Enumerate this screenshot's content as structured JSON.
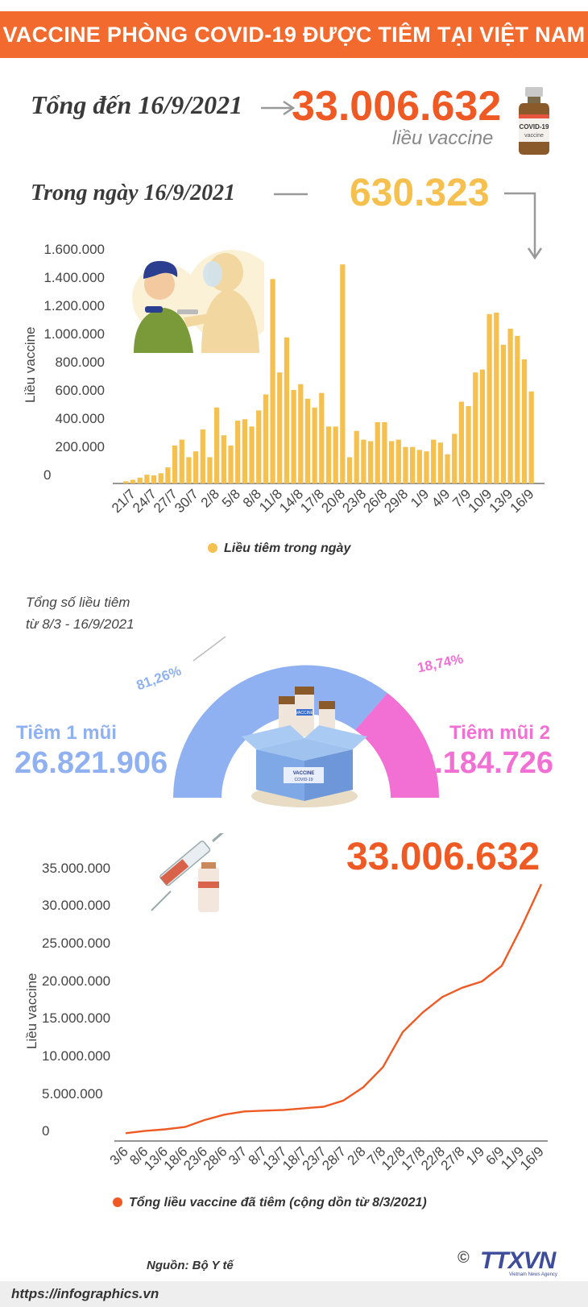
{
  "header": {
    "title": "VACCINE PHÒNG COVID-19 ĐƯỢC TIÊM TẠI VIỆT NAM"
  },
  "summary": {
    "total_label": "Tổng đến 16/9/2021",
    "total_value": "33.006.632",
    "total_unit": "liều vaccine",
    "vial_text": "COVID-19",
    "vial_subtext": "vaccine",
    "day_label": "Trong ngày 16/9/2021",
    "day_value": "630.323"
  },
  "colors": {
    "orange": "#ef5a24",
    "yellow": "#f5c04e",
    "blue": "#8fb1f2",
    "pink": "#f26fd3"
  },
  "bar_chart": {
    "ylabel": "Liều vaccine",
    "yticks": [
      "1.600.000",
      "1.400.000",
      "1.200.000",
      "1.000.000",
      "800.000",
      "600.000",
      "400.000",
      "200.000",
      "0"
    ],
    "legend": "Liều tiêm trong ngày"
  },
  "donut": {
    "caption_line1": "Tổng số liều tiêm",
    "caption_line2": "từ 8/3 - 16/9/2021",
    "dose1_label": "Tiêm 1 mũi",
    "dose1_value": "26.821.906",
    "dose1_pct": "81,26%",
    "dose2_label": "Tiêm mũi 2",
    "dose2_value": "6.184.726",
    "dose2_pct": "18,74%",
    "box_label_top": "VACCINE",
    "box_label_bottom": "COVID-19",
    "bottle_label": "VACCINE"
  },
  "line_chart": {
    "ylabel": "Liều vaccine",
    "yticks": [
      "35.000.000",
      "30.000.000",
      "25.000.000",
      "20.000.000",
      "15.000.000",
      "10.000.000",
      "5.000.000",
      "0"
    ],
    "total": "33.006.632",
    "legend": "Tổng liều vaccine đã tiêm (cộng dồn từ 8/3/2021)"
  },
  "footer": {
    "source": "Nguồn: Bộ Y tế",
    "url": "https://infographics.vn",
    "copyright": "©",
    "brand": "TTXVN",
    "brand_sub": "Vietnam News Agency"
  },
  "chart_data": [
    {
      "type": "bar",
      "title": "",
      "xlabel": "",
      "ylabel": "Liều vaccine",
      "ylim": [
        0,
        1600000
      ],
      "categories": [
        "20/7",
        "21/7",
        "22/7",
        "23/7",
        "24/7",
        "25/7",
        "26/7",
        "27/7",
        "28/7",
        "29/7",
        "30/7",
        "31/7",
        "1/8",
        "2/8",
        "3/8",
        "4/8",
        "5/8",
        "6/8",
        "7/8",
        "8/8",
        "9/8",
        "10/8",
        "11/8",
        "12/8",
        "13/8",
        "14/8",
        "15/8",
        "16/8",
        "17/8",
        "18/8",
        "19/8",
        "20/8",
        "21/8",
        "22/8",
        "23/8",
        "24/8",
        "25/8",
        "26/8",
        "27/8",
        "28/8",
        "29/8",
        "30/8",
        "31/8",
        "1/9",
        "2/9",
        "3/9",
        "4/9",
        "5/9",
        "6/9",
        "7/9",
        "8/9",
        "9/9",
        "10/9",
        "11/9",
        "12/9",
        "13/9",
        "14/9",
        "15/9",
        "16/9"
      ],
      "tick_labels": [
        "21/7",
        "24/7",
        "27/7",
        "30/7",
        "2/8",
        "5/8",
        "8/8",
        "11/8",
        "14/8",
        "17/8",
        "20/8",
        "23/8",
        "26/8",
        "29/8",
        "1/9",
        "4/9",
        "7/9",
        "10/9",
        "13/9",
        "16/9"
      ],
      "series": [
        {
          "name": "Liều tiêm trong ngày",
          "values": [
            15000,
            25000,
            40000,
            60000,
            55000,
            70000,
            110000,
            260000,
            300000,
            180000,
            220000,
            370000,
            180000,
            520000,
            330000,
            260000,
            430000,
            440000,
            390000,
            500000,
            610000,
            1400000,
            760000,
            1000000,
            640000,
            680000,
            580000,
            520000,
            620000,
            390000,
            390000,
            1500000,
            180000,
            360000,
            300000,
            290000,
            420000,
            420000,
            290000,
            300000,
            250000,
            250000,
            230000,
            220000,
            300000,
            280000,
            200000,
            340000,
            560000,
            530000,
            760000,
            780000,
            1160000,
            1170000,
            950000,
            1060000,
            1010000,
            850000,
            630323
          ]
        }
      ]
    },
    {
      "type": "pie",
      "title": "Tổng số liều tiêm từ 8/3 - 16/9/2021",
      "categories": [
        "Tiêm 1 mũi",
        "Tiêm mũi 2"
      ],
      "values": [
        26821906,
        6184726
      ],
      "percentages": [
        81.26,
        18.74
      ]
    },
    {
      "type": "line",
      "title": "",
      "xlabel": "",
      "ylabel": "Liều vaccine",
      "ylim": [
        0,
        35000000
      ],
      "tick_labels": [
        "3/6",
        "8/6",
        "13/6",
        "18/6",
        "23/6",
        "28/6",
        "3/7",
        "8/7",
        "13/7",
        "18/7",
        "23/7",
        "28/7",
        "2/8",
        "7/8",
        "12/8",
        "17/8",
        "22/8",
        "27/8",
        "1/9",
        "6/9",
        "11/9",
        "16/9"
      ],
      "series": [
        {
          "name": "Tổng liều vaccine đã tiêm (cộng dồn từ 8/3/2021)",
          "x": [
            "3/6",
            "8/6",
            "13/6",
            "18/6",
            "23/6",
            "28/6",
            "3/7",
            "8/7",
            "13/7",
            "18/7",
            "23/7",
            "28/7",
            "2/8",
            "7/8",
            "12/8",
            "17/8",
            "22/8",
            "27/8",
            "1/9",
            "6/9",
            "11/9",
            "16/9"
          ],
          "values": [
            1000000,
            1300000,
            1500000,
            1800000,
            2700000,
            3400000,
            3800000,
            3900000,
            4000000,
            4200000,
            4400000,
            5200000,
            6900000,
            9500000,
            14000000,
            16500000,
            18500000,
            19700000,
            20500000,
            22500000,
            27500000,
            33006632
          ]
        }
      ]
    }
  ]
}
